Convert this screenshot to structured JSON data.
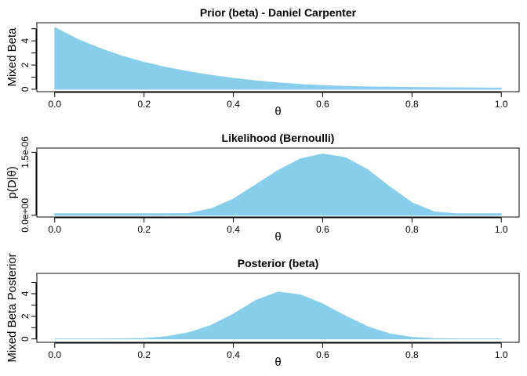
{
  "chart_data": [
    {
      "type": "area",
      "title": "Prior (beta) - Daniel Carpenter",
      "xlabel": "θ",
      "ylabel": "Mixed Beta",
      "xlim": [
        -0.04,
        1.04
      ],
      "ylim": [
        -0.2,
        5.5
      ],
      "x_ticks": [
        0.0,
        0.2,
        0.4,
        0.6,
        0.8,
        1.0
      ],
      "x_tick_labels": [
        "0.0",
        "0.2",
        "0.4",
        "0.6",
        "0.8",
        "1.0"
      ],
      "y_ticks": [
        0,
        1,
        2,
        3,
        4,
        5
      ],
      "y_tick_labels": [
        "0",
        "",
        "2",
        "",
        "4",
        ""
      ],
      "fill_color": "#87CEEB",
      "series": [
        {
          "x": [
            0.0,
            0.05,
            0.1,
            0.15,
            0.2,
            0.25,
            0.3,
            0.35,
            0.4,
            0.45,
            0.5,
            0.55,
            0.6,
            0.65,
            0.7,
            0.75,
            0.8,
            0.85,
            0.9,
            0.95,
            1.0
          ],
          "y": [
            5.1,
            4.15,
            3.4,
            2.75,
            2.23,
            1.8,
            1.45,
            1.15,
            0.9,
            0.7,
            0.53,
            0.4,
            0.3,
            0.24,
            0.2,
            0.17,
            0.15,
            0.13,
            0.12,
            0.11,
            0.1
          ]
        }
      ]
    },
    {
      "type": "area",
      "title": "Likelihood (Bernoulli)",
      "xlabel": "θ",
      "ylabel": "p(D|θ)",
      "xlim": [
        -0.04,
        1.04
      ],
      "ylim": [
        -4e-08,
        1.6e-06
      ],
      "x_ticks": [
        0.0,
        0.2,
        0.4,
        0.6,
        0.8,
        1.0
      ],
      "x_tick_labels": [
        "0.0",
        "0.2",
        "0.4",
        "0.6",
        "0.8",
        "1.0"
      ],
      "y_ticks": [
        0,
        1.5e-06
      ],
      "y_tick_labels": [
        "0.0e+00",
        "1.5e-06"
      ],
      "fill_color": "#87CEEB",
      "baseline": 4e-08,
      "series": [
        {
          "x": [
            0.0,
            0.05,
            0.1,
            0.15,
            0.2,
            0.25,
            0.3,
            0.35,
            0.4,
            0.45,
            0.5,
            0.55,
            0.6,
            0.65,
            0.7,
            0.75,
            0.8,
            0.85,
            0.9,
            0.95,
            1.0
          ],
          "y": [
            0,
            0,
            0,
            0,
            1e-09,
            8e-09,
            4.4e-08,
            1.55e-07,
            3.87e-07,
            7.25e-07,
            1.068e-06,
            1.342e-06,
            1.461e-06,
            1.376e-06,
            1.092e-06,
            6.79e-07,
            2.99e-07,
            8e-08,
            9e-09,
            0,
            0
          ]
        }
      ]
    },
    {
      "type": "area",
      "title": "Posterior (beta)",
      "xlabel": "θ",
      "ylabel": "Mixed Beta Posterior",
      "xlim": [
        -0.04,
        1.04
      ],
      "ylim": [
        -0.3,
        5.8
      ],
      "x_ticks": [
        0.0,
        0.2,
        0.4,
        0.6,
        0.8,
        1.0
      ],
      "x_tick_labels": [
        "0.0",
        "0.2",
        "0.4",
        "0.6",
        "0.8",
        "1.0"
      ],
      "y_ticks": [
        0,
        1,
        2,
        3,
        4,
        5
      ],
      "y_tick_labels": [
        "0",
        "",
        "2",
        "",
        "4",
        ""
      ],
      "fill_color": "#87CEEB",
      "series": [
        {
          "x": [
            0.0,
            0.05,
            0.1,
            0.15,
            0.2,
            0.25,
            0.3,
            0.35,
            0.4,
            0.45,
            0.5,
            0.55,
            0.6,
            0.65,
            0.7,
            0.75,
            0.8,
            0.85,
            0.9,
            0.95,
            1.0
          ],
          "y": [
            0,
            0,
            0,
            0.01,
            0.05,
            0.2,
            0.55,
            1.2,
            2.2,
            3.4,
            4.15,
            3.9,
            3.1,
            2.05,
            1.1,
            0.45,
            0.14,
            0.03,
            0.005,
            0,
            0
          ]
        }
      ]
    }
  ]
}
